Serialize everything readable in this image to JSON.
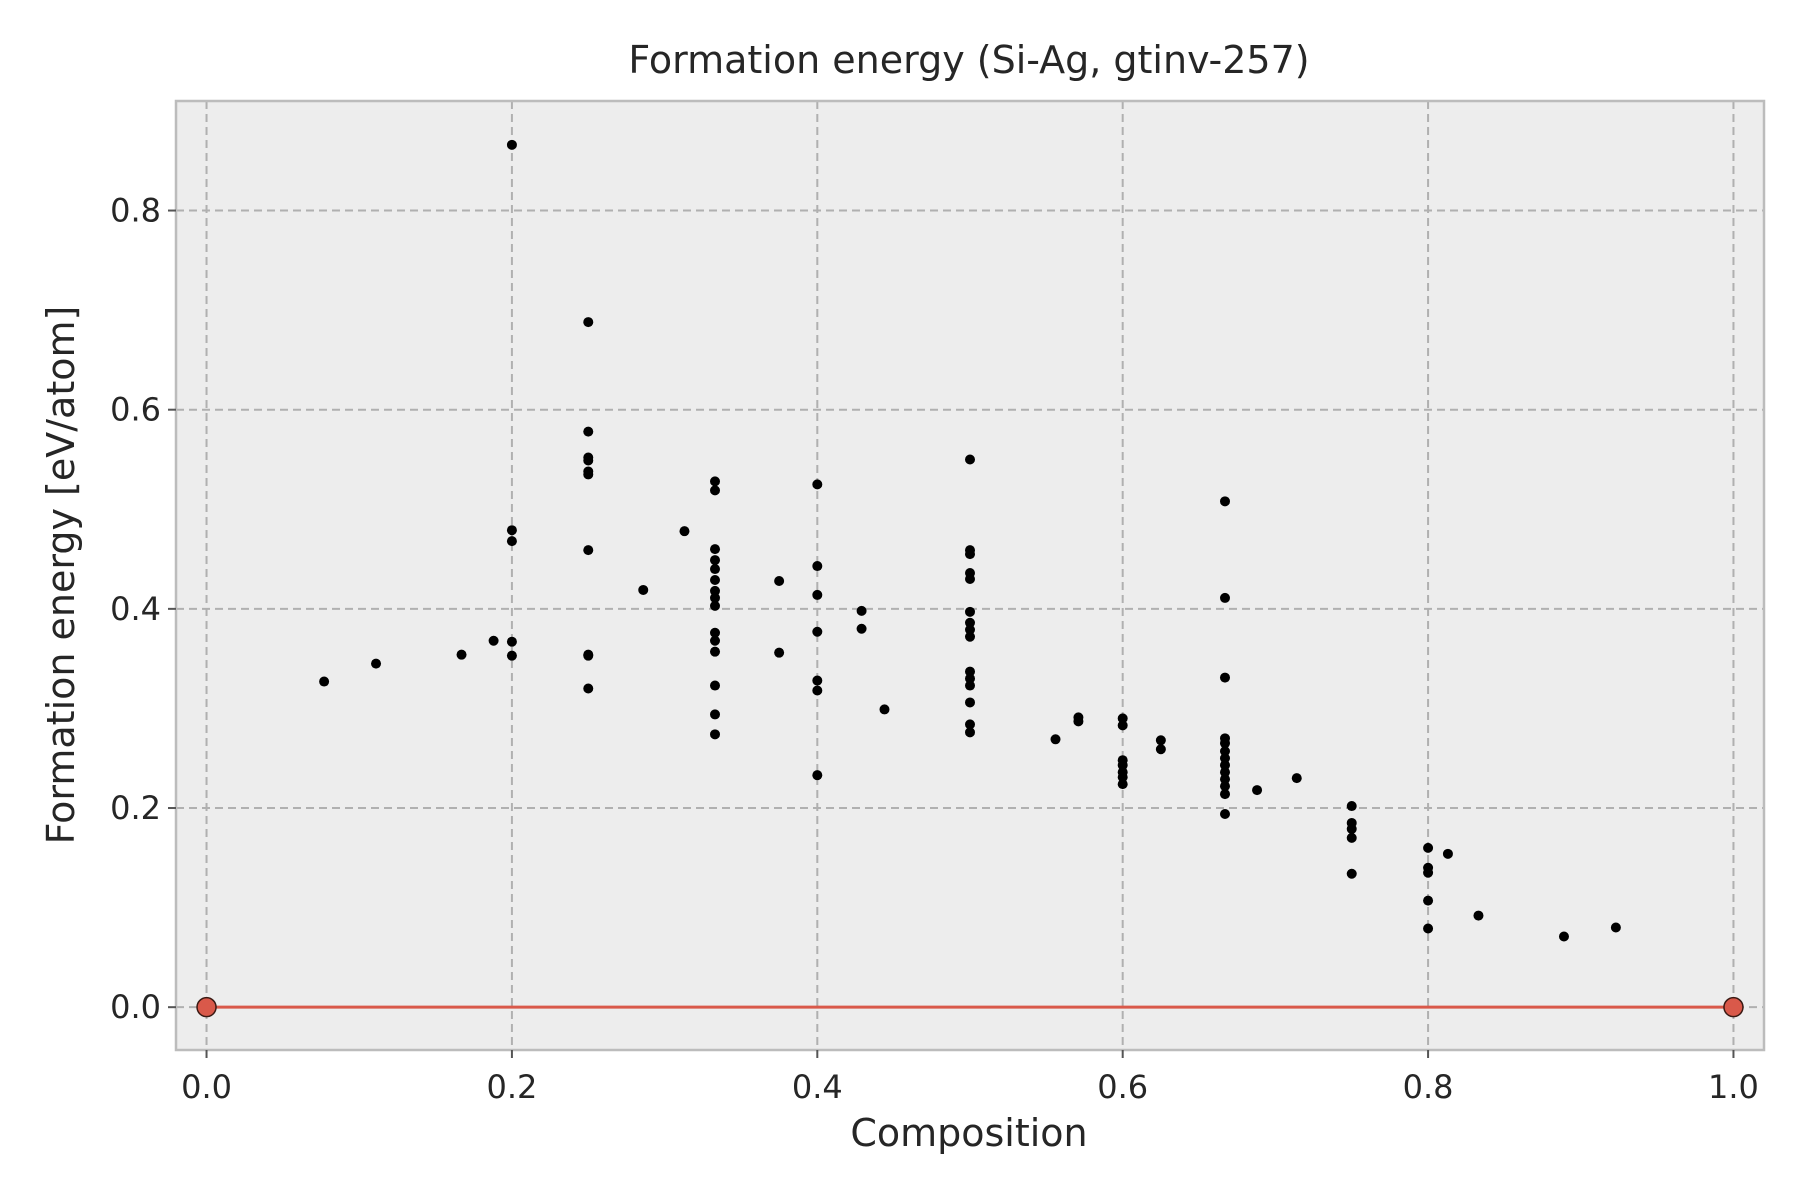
{
  "chart_data": {
    "type": "scatter",
    "title": "Formation energy (Si-Ag, gtinv-257)",
    "xlabel": "Composition",
    "ylabel": "Formation energy [eV/atom]",
    "xlim": [
      -0.02,
      1.02
    ],
    "ylim": [
      -0.043,
      0.91
    ],
    "xticks": [
      "0.0",
      "0.2",
      "0.4",
      "0.6",
      "0.8",
      "1.0"
    ],
    "yticks": [
      "0.0",
      "0.2",
      "0.4",
      "0.6",
      "0.8"
    ],
    "grid": true,
    "colors": {
      "plot_background": "#ededed",
      "frame": "#bcbcbc",
      "grid": "#b0b0b0",
      "points": "#000000",
      "hull": "#d9594a"
    },
    "hull": {
      "x": [
        0.0,
        1.0
      ],
      "y": [
        0.0,
        0.0
      ]
    },
    "points": [
      [
        0.077,
        0.327
      ],
      [
        0.111,
        0.345
      ],
      [
        0.167,
        0.354
      ],
      [
        0.188,
        0.368
      ],
      [
        0.2,
        0.866
      ],
      [
        0.2,
        0.479
      ],
      [
        0.2,
        0.468
      ],
      [
        0.2,
        0.367
      ],
      [
        0.2,
        0.353
      ],
      [
        0.25,
        0.688
      ],
      [
        0.25,
        0.578
      ],
      [
        0.25,
        0.552
      ],
      [
        0.25,
        0.549
      ],
      [
        0.25,
        0.538
      ],
      [
        0.25,
        0.535
      ],
      [
        0.25,
        0.459
      ],
      [
        0.25,
        0.354
      ],
      [
        0.25,
        0.353
      ],
      [
        0.25,
        0.32
      ],
      [
        0.286,
        0.419
      ],
      [
        0.313,
        0.478
      ],
      [
        0.333,
        0.528
      ],
      [
        0.333,
        0.519
      ],
      [
        0.333,
        0.46
      ],
      [
        0.333,
        0.449
      ],
      [
        0.333,
        0.44
      ],
      [
        0.333,
        0.429
      ],
      [
        0.333,
        0.418
      ],
      [
        0.333,
        0.411
      ],
      [
        0.333,
        0.403
      ],
      [
        0.333,
        0.376
      ],
      [
        0.333,
        0.368
      ],
      [
        0.333,
        0.357
      ],
      [
        0.333,
        0.323
      ],
      [
        0.333,
        0.294
      ],
      [
        0.333,
        0.274
      ],
      [
        0.375,
        0.428
      ],
      [
        0.375,
        0.356
      ],
      [
        0.4,
        0.525
      ],
      [
        0.4,
        0.443
      ],
      [
        0.4,
        0.414
      ],
      [
        0.4,
        0.377
      ],
      [
        0.4,
        0.328
      ],
      [
        0.4,
        0.318
      ],
      [
        0.4,
        0.233
      ],
      [
        0.429,
        0.398
      ],
      [
        0.429,
        0.38
      ],
      [
        0.444,
        0.299
      ],
      [
        0.5,
        0.55
      ],
      [
        0.5,
        0.459
      ],
      [
        0.5,
        0.455
      ],
      [
        0.5,
        0.436
      ],
      [
        0.5,
        0.43
      ],
      [
        0.5,
        0.397
      ],
      [
        0.5,
        0.386
      ],
      [
        0.5,
        0.379
      ],
      [
        0.5,
        0.372
      ],
      [
        0.5,
        0.337
      ],
      [
        0.5,
        0.33
      ],
      [
        0.5,
        0.323
      ],
      [
        0.5,
        0.306
      ],
      [
        0.5,
        0.284
      ],
      [
        0.5,
        0.276
      ],
      [
        0.556,
        0.269
      ],
      [
        0.571,
        0.291
      ],
      [
        0.571,
        0.287
      ],
      [
        0.6,
        0.29
      ],
      [
        0.6,
        0.283
      ],
      [
        0.6,
        0.248
      ],
      [
        0.6,
        0.243
      ],
      [
        0.6,
        0.236
      ],
      [
        0.6,
        0.231
      ],
      [
        0.6,
        0.224
      ],
      [
        0.625,
        0.268
      ],
      [
        0.625,
        0.259
      ],
      [
        0.667,
        0.508
      ],
      [
        0.667,
        0.411
      ],
      [
        0.667,
        0.331
      ],
      [
        0.667,
        0.27
      ],
      [
        0.667,
        0.265
      ],
      [
        0.667,
        0.257
      ],
      [
        0.667,
        0.25
      ],
      [
        0.667,
        0.243
      ],
      [
        0.667,
        0.236
      ],
      [
        0.667,
        0.229
      ],
      [
        0.667,
        0.222
      ],
      [
        0.667,
        0.214
      ],
      [
        0.667,
        0.194
      ],
      [
        0.688,
        0.218
      ],
      [
        0.714,
        0.23
      ],
      [
        0.75,
        0.202
      ],
      [
        0.75,
        0.185
      ],
      [
        0.75,
        0.179
      ],
      [
        0.75,
        0.17
      ],
      [
        0.75,
        0.134
      ],
      [
        0.8,
        0.16
      ],
      [
        0.8,
        0.14
      ],
      [
        0.8,
        0.135
      ],
      [
        0.8,
        0.107
      ],
      [
        0.8,
        0.079
      ],
      [
        0.813,
        0.154
      ],
      [
        0.833,
        0.092
      ],
      [
        0.889,
        0.071
      ],
      [
        0.923,
        0.08
      ]
    ]
  }
}
